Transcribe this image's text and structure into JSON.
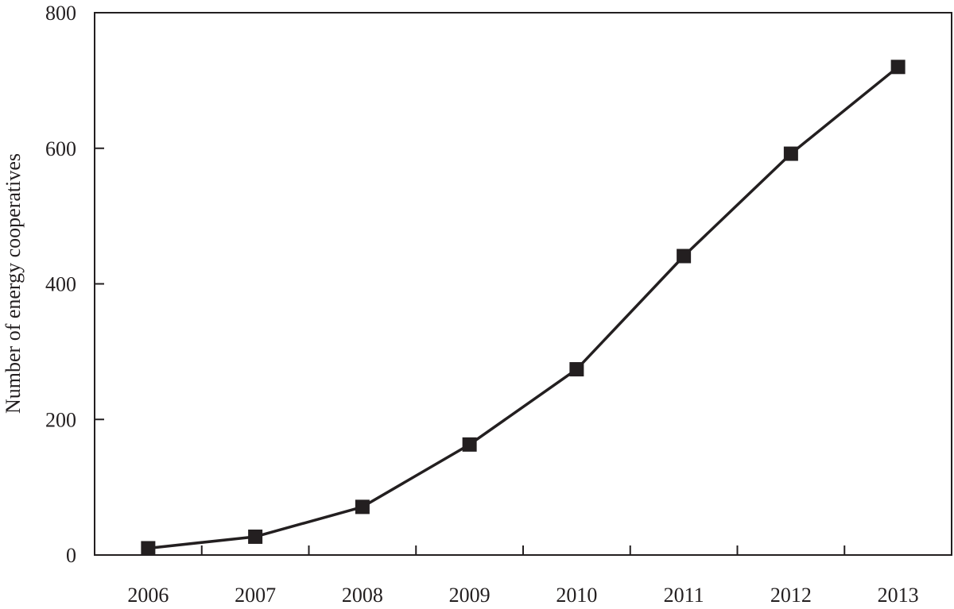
{
  "chart_data": {
    "type": "line",
    "title": "",
    "xlabel": "",
    "ylabel": "Number of energy cooperatives",
    "categories": [
      "2006",
      "2007",
      "2008",
      "2009",
      "2010",
      "2011",
      "2012",
      "2013"
    ],
    "series": [
      {
        "values": [
          10,
          27,
          71,
          163,
          274,
          441,
          592,
          720
        ]
      }
    ],
    "yticks": [
      "0",
      "200",
      "400",
      "600",
      "800"
    ],
    "ylim": [
      0,
      800
    ],
    "grid": false,
    "legend": "none",
    "marker": "square",
    "line_color": "#231f20",
    "marker_color": "#231f20"
  }
}
